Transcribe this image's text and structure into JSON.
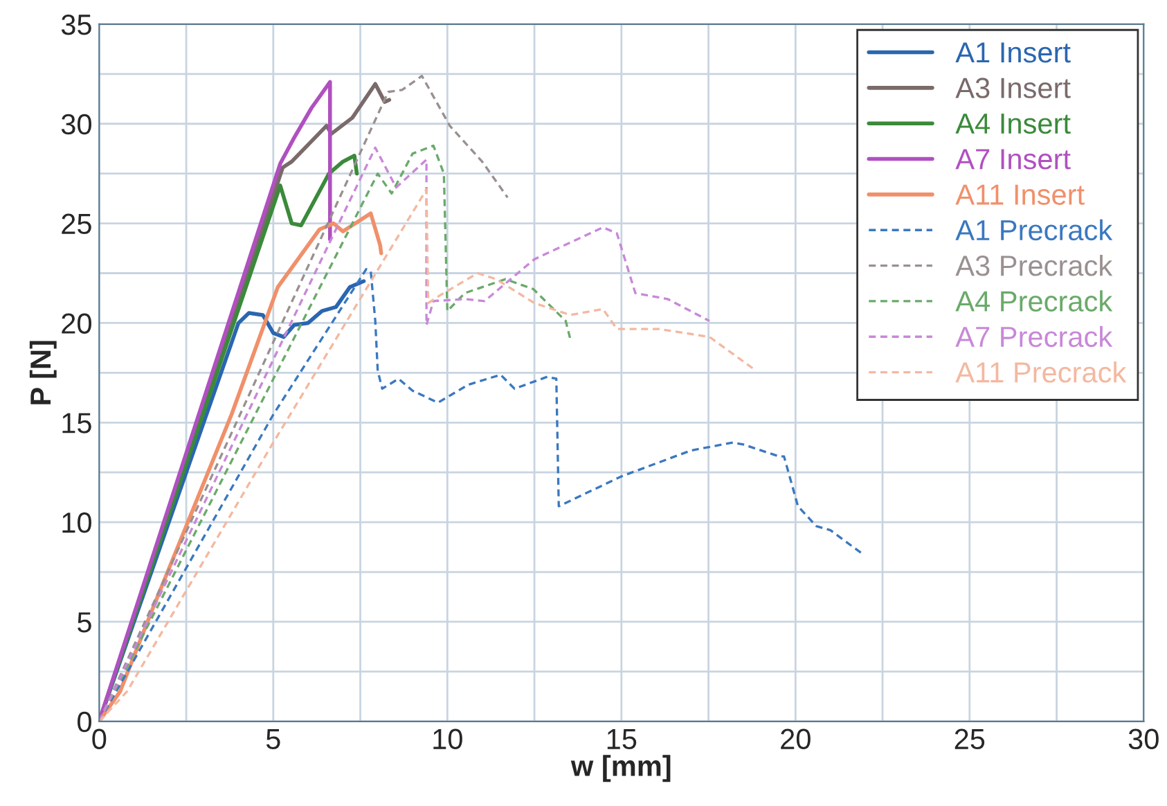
{
  "chart_data": {
    "type": "line",
    "xlabel": "w [mm]",
    "ylabel": "P [N]",
    "xlim": [
      0,
      30
    ],
    "ylim": [
      0,
      35
    ],
    "xticks": [
      0,
      {
        "value": 2.5,
        "label": null
      },
      5,
      {
        "value": 7.5,
        "label": null
      },
      10,
      {
        "value": 12.5,
        "label": null
      },
      15,
      {
        "value": 17.5,
        "label": null
      },
      20,
      {
        "value": 22.5,
        "label": null
      },
      25,
      {
        "value": 27.5,
        "label": null
      },
      30
    ],
    "yticks": [
      0,
      {
        "value": 2.5,
        "label": null
      },
      5,
      {
        "value": 7.5,
        "label": null
      },
      10,
      {
        "value": 12.5,
        "label": null
      },
      15,
      {
        "value": 17.5,
        "label": null
      },
      20,
      {
        "value": 22.5,
        "label": null
      },
      25,
      {
        "value": 27.5,
        "label": null
      },
      30,
      {
        "value": 32.5,
        "label": null
      },
      35
    ],
    "grid": true,
    "legend": "top right",
    "series": [
      {
        "name": "A1 Insert",
        "color": "#2a66b0",
        "line_style": "solid",
        "x": [
          0,
          4.0,
          4.3,
          4.7,
          5.0,
          5.3,
          5.6,
          6.0,
          6.4,
          6.8,
          7.2,
          7.6
        ],
        "values": [
          0,
          20.0,
          20.5,
          20.4,
          19.5,
          19.3,
          19.9,
          20.0,
          20.6,
          20.8,
          21.8,
          22.1
        ]
      },
      {
        "name": "A3 Insert",
        "color": "#7a6a6a",
        "line_style": "solid",
        "x": [
          0,
          5.27,
          5.53,
          6.53,
          6.67,
          7.27,
          7.93,
          8.2,
          8.33
        ],
        "values": [
          0,
          27.8,
          28.1,
          29.9,
          29.5,
          30.3,
          32.0,
          31.1,
          31.2
        ]
      },
      {
        "name": "A4 Insert",
        "color": "#3a8a3a",
        "line_style": "solid",
        "x": [
          0,
          5.2,
          5.53,
          5.8,
          6.6,
          7.0,
          7.33,
          7.4
        ],
        "values": [
          0,
          26.9,
          25.0,
          24.9,
          27.5,
          28.1,
          28.4,
          27.5
        ]
      },
      {
        "name": "A7 Insert",
        "color": "#b050c0",
        "line_style": "solid",
        "x": [
          0,
          5.2,
          5.6,
          6.1,
          6.63,
          6.63
        ],
        "values": [
          0,
          28.0,
          29.3,
          30.8,
          32.1,
          24.2
        ]
      },
      {
        "name": "A11 Insert",
        "color": "#f0906a",
        "line_style": "solid",
        "x": [
          0,
          0.6,
          1.5,
          3.8,
          5.13,
          6.33,
          6.73,
          7.0,
          7.8,
          8.07,
          8.1
        ],
        "values": [
          0,
          1.5,
          5.5,
          15.4,
          21.8,
          24.7,
          25.0,
          24.6,
          25.5,
          23.9,
          23.5
        ]
      },
      {
        "name": "A1 Precrack",
        "color": "#3a78c0",
        "line_style": "dashed",
        "x": [
          0,
          5.0,
          7.67,
          7.8,
          7.93,
          8.0,
          8.13,
          8.6,
          9.0,
          9.73,
          10.6,
          11.53,
          11.93,
          12.87,
          13.13,
          13.2,
          15.0,
          17.0,
          18.2,
          18.5,
          19.53,
          19.67,
          20.07,
          20.6,
          21.0,
          21.93
        ],
        "values": [
          0,
          15.4,
          22.7,
          22.6,
          20.1,
          17.6,
          16.7,
          17.2,
          16.6,
          16.0,
          16.9,
          17.4,
          16.7,
          17.3,
          17.2,
          10.8,
          12.3,
          13.6,
          14.0,
          13.9,
          13.3,
          13.3,
          10.8,
          9.8,
          9.6,
          8.4
        ]
      },
      {
        "name": "A3 Precrack",
        "color": "#9a9090",
        "line_style": "dashed",
        "x": [
          0,
          8.3,
          8.7,
          9.27,
          10.07,
          11.0,
          11.73
        ],
        "values": [
          0,
          31.6,
          31.7,
          32.4,
          29.9,
          28.1,
          26.3
        ]
      },
      {
        "name": "A4 Precrack",
        "color": "#6aaa6a",
        "line_style": "dashed",
        "x": [
          0,
          8.0,
          8.4,
          9.0,
          9.6,
          9.9,
          10.0,
          10.5,
          11.67,
          12.47,
          13.4,
          13.53
        ],
        "values": [
          0,
          27.5,
          26.5,
          28.5,
          28.9,
          27.5,
          20.6,
          21.5,
          22.2,
          21.7,
          20.1,
          19.2
        ]
      },
      {
        "name": "A7 Precrack",
        "color": "#c888d8",
        "line_style": "dashed",
        "x": [
          0,
          7.93,
          8.53,
          9.4,
          9.4,
          9.6,
          10.5,
          11.07,
          12.5,
          14.47,
          14.87,
          15.4,
          16.33,
          17.53
        ],
        "values": [
          0,
          28.8,
          26.8,
          28.2,
          19.9,
          21.1,
          21.2,
          21.1,
          23.2,
          24.8,
          24.5,
          21.5,
          21.2,
          20.1
        ]
      },
      {
        "name": "A11 Precrack",
        "color": "#f4b8a0",
        "line_style": "dashed",
        "x": [
          0,
          0.8,
          5.0,
          9.4,
          9.45,
          9.8,
          10.87,
          11.4,
          12.5,
          13.53,
          14.47,
          14.87,
          16.07,
          17.53,
          18.87
        ],
        "values": [
          0,
          1.5,
          14.0,
          26.7,
          21.0,
          21.4,
          22.5,
          22.2,
          21.0,
          20.4,
          20.7,
          19.7,
          19.7,
          19.3,
          17.6
        ]
      }
    ]
  }
}
